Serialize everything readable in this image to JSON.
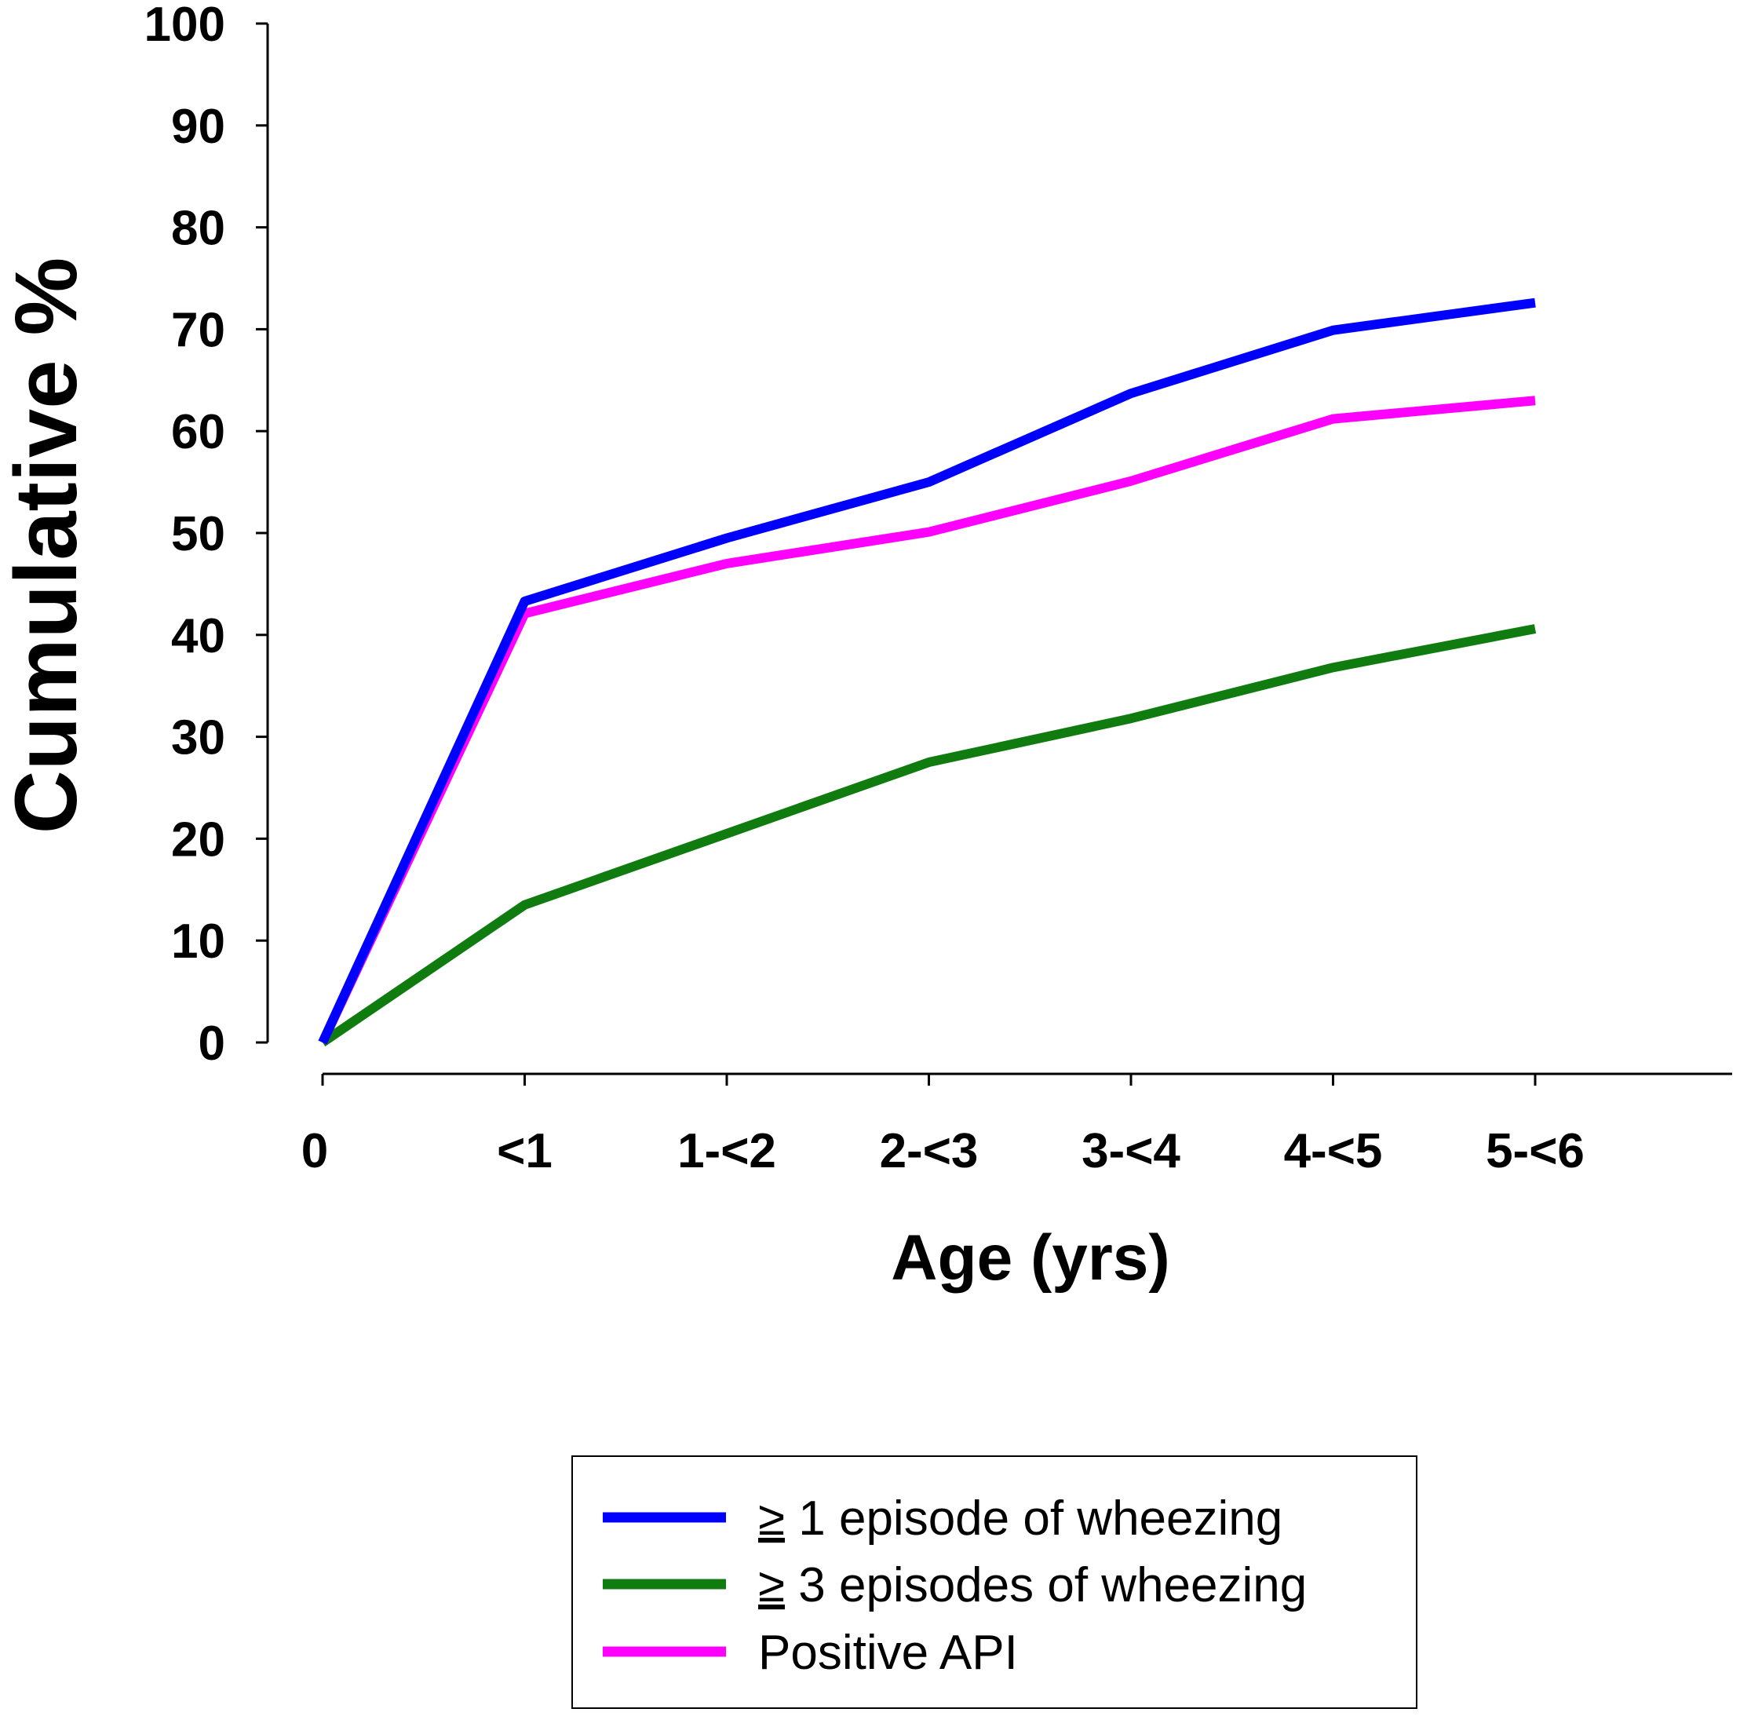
{
  "chart_data": {
    "type": "line",
    "title": "",
    "xlabel": "Age (yrs)",
    "ylabel": "Cumulative %",
    "categories": [
      "0",
      "<1",
      "1-<2",
      "2-<3",
      "3-<4",
      "4-<5",
      "5-<6"
    ],
    "ylim": [
      0,
      100
    ],
    "yticks": [
      0,
      10,
      20,
      30,
      40,
      50,
      60,
      70,
      80,
      90,
      100
    ],
    "grid": false,
    "legend_position": "bottom-center",
    "series": [
      {
        "name_symbol": "≥",
        "name": " 1 episode of wheezing",
        "color": "#0000ff",
        "values": [
          0,
          43.3,
          49.5,
          55,
          63.7,
          69.9,
          72.6
        ]
      },
      {
        "name_symbol": "≥",
        "name": " 3 episodes of wheezing",
        "color": "#107c10",
        "values": [
          0,
          13.5,
          20.5,
          27.5,
          31.8,
          36.8,
          40.6
        ]
      },
      {
        "name_symbol": "",
        "name": "Positive API",
        "color": "#ff00ff",
        "values": [
          0,
          42.1,
          47,
          50.1,
          55.1,
          61.2,
          63
        ]
      }
    ]
  }
}
